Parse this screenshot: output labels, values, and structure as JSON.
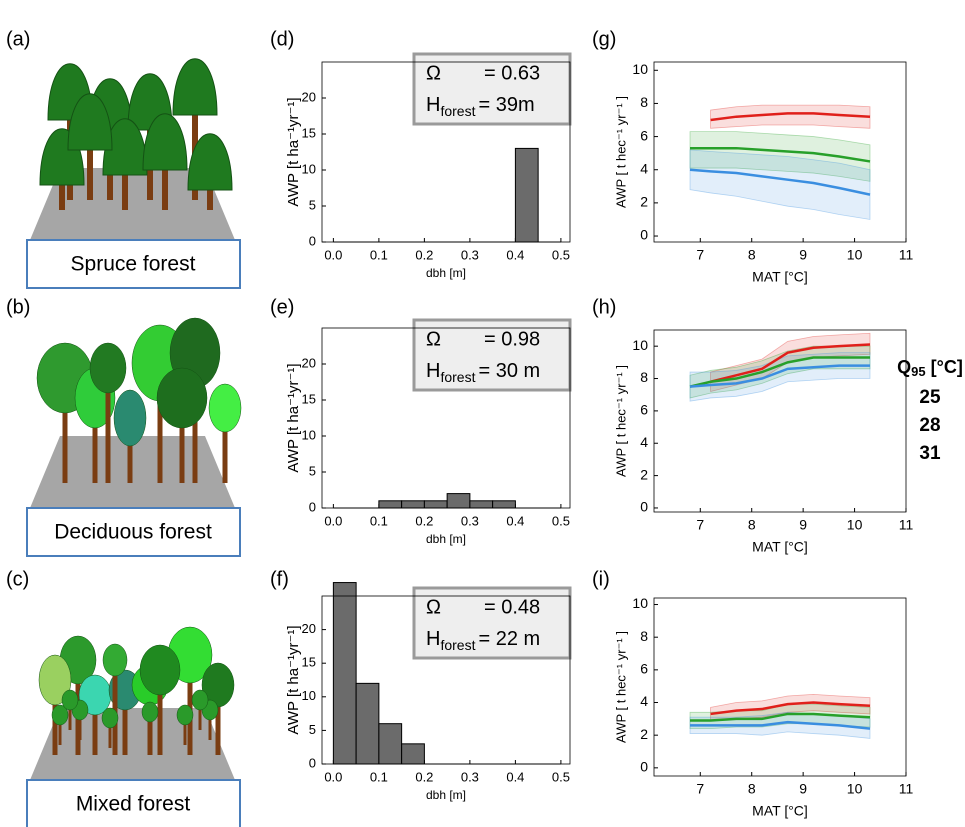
{
  "illustrations": [
    {
      "label": "(a)",
      "caption": "Spruce forest"
    },
    {
      "label": "(b)",
      "caption": "Deciduous forest"
    },
    {
      "label": "(c)",
      "caption": "Mixed forest"
    }
  ],
  "chart_data": [
    {
      "type": "histogram",
      "panel_label": "(d)",
      "annotation": {
        "omega": "Ω",
        "omega_value": "= 0.63",
        "h": "H",
        "h_sub": "forest",
        "h_value": "= 39m"
      },
      "bins": [
        0,
        0.05,
        0.1,
        0.15,
        0.2,
        0.25,
        0.3,
        0.35,
        0.4,
        0.45,
        0.5
      ],
      "values": [
        0,
        0,
        0,
        0,
        0,
        0,
        0,
        0,
        13,
        0
      ],
      "color": "#6b6b6b",
      "xlim": [
        -0.025,
        0.52
      ],
      "ylim": [
        0,
        25
      ],
      "xticks": [
        {
          "value": 0,
          "label": "0.0"
        },
        0.1,
        0.2,
        0.3,
        0.4,
        0.5
      ],
      "yticks": [
        0,
        5,
        10,
        15,
        20
      ],
      "xlabel": "dbh [m]",
      "ylabel": "AWP [t ha⁻¹yr⁻¹]"
    },
    {
      "type": "histogram",
      "panel_label": "(e)",
      "annotation": {
        "omega": "Ω",
        "omega_value": "= 0.98",
        "h": "H",
        "h_sub": "forest",
        "h_value": "= 30 m"
      },
      "bins": [
        0,
        0.05,
        0.1,
        0.15,
        0.2,
        0.25,
        0.3,
        0.35,
        0.4,
        0.45,
        0.5
      ],
      "values": [
        0,
        0,
        1,
        1,
        1,
        2,
        1,
        1,
        0,
        0
      ],
      "color": "#6b6b6b",
      "xlim": [
        -0.025,
        0.52
      ],
      "ylim": [
        0,
        25
      ],
      "xticks": [
        {
          "value": 0,
          "label": "0.0"
        },
        0.1,
        0.2,
        0.3,
        0.4,
        0.5
      ],
      "yticks": [
        0,
        5,
        10,
        15,
        20
      ],
      "xlabel": "dbh [m]",
      "ylabel": "AWP [t ha⁻¹yr⁻¹]"
    },
    {
      "type": "histogram",
      "panel_label": "(f)",
      "annotation": {
        "omega": "Ω",
        "omega_value": "= 0.48",
        "h": "H",
        "h_sub": "forest",
        "h_value": "= 22 m"
      },
      "bins": [
        0,
        0.05,
        0.1,
        0.15,
        0.2,
        0.25,
        0.3,
        0.35,
        0.4,
        0.45,
        0.5
      ],
      "values": [
        27,
        12,
        6,
        3,
        0,
        0,
        0,
        0,
        0,
        0
      ],
      "color": "#6b6b6b",
      "xlim": [
        -0.025,
        0.52
      ],
      "ylim": [
        0,
        25
      ],
      "xticks": [
        {
          "value": 0,
          "label": "0.0"
        },
        0.1,
        0.2,
        0.3,
        0.4,
        0.5
      ],
      "yticks": [
        0,
        5,
        10,
        15,
        20
      ],
      "xlabel": "dbh [m]",
      "ylabel": "AWP [t ha⁻¹yr⁻¹]"
    },
    {
      "type": "line",
      "panel_label": "(g)",
      "x": [
        6.8,
        7.2,
        7.7,
        8.2,
        8.7,
        9.2,
        9.7,
        10.3
      ],
      "series": [
        {
          "color": "#e0201b",
          "values": [
            null,
            7.0,
            7.2,
            7.3,
            7.4,
            7.4,
            7.3,
            7.2
          ],
          "lower": [
            null,
            6.5,
            6.6,
            6.7,
            6.7,
            6.7,
            6.6,
            6.5
          ],
          "upper": [
            null,
            7.6,
            7.8,
            7.9,
            7.9,
            7.9,
            7.9,
            7.8
          ]
        },
        {
          "color": "#27a02a",
          "values": [
            5.3,
            5.3,
            5.3,
            5.2,
            5.1,
            5.0,
            4.8,
            4.5
          ],
          "lower": [
            4.1,
            4.1,
            4.1,
            4.0,
            3.9,
            3.8,
            3.6,
            3.3
          ],
          "upper": [
            6.3,
            6.3,
            6.3,
            6.2,
            6.1,
            6.0,
            5.8,
            5.5
          ]
        },
        {
          "color": "#3a8ee0",
          "values": [
            4.0,
            3.9,
            3.8,
            3.6,
            3.4,
            3.2,
            2.9,
            2.5
          ],
          "lower": [
            2.8,
            2.6,
            2.4,
            2.1,
            1.8,
            1.6,
            1.3,
            1.0
          ],
          "upper": [
            5.2,
            5.1,
            5.0,
            4.9,
            4.8,
            4.6,
            4.4,
            4.0
          ]
        }
      ],
      "xlim": [
        6.1,
        11
      ],
      "ylim": [
        -0.36,
        10.5
      ],
      "xticks": [
        7,
        8,
        9,
        10,
        11
      ],
      "yticks": [
        0,
        2,
        4,
        6,
        8,
        10
      ],
      "xlabel": "MAT [°C]",
      "ylabel": "AWP [ t hec⁻¹ yr⁻¹ ]"
    },
    {
      "type": "line",
      "panel_label": "(h)",
      "x": [
        6.8,
        7.2,
        7.7,
        8.2,
        8.7,
        9.2,
        9.7,
        10.3
      ],
      "legend": {
        "title": "Q",
        "title_sub": "95",
        "title_unit": " [°C]"
      },
      "series": [
        {
          "name": "25",
          "color": "#e0201b",
          "values": [
            null,
            7.8,
            8.2,
            8.6,
            9.6,
            9.9,
            10.0,
            10.1
          ],
          "lower": [
            null,
            7.2,
            7.6,
            8.0,
            9.0,
            9.3,
            9.4,
            9.5
          ],
          "upper": [
            null,
            8.4,
            8.8,
            9.2,
            10.3,
            10.6,
            10.7,
            10.8
          ]
        },
        {
          "name": "28",
          "color": "#27a02a",
          "values": [
            7.5,
            7.8,
            8.0,
            8.4,
            9.0,
            9.3,
            9.3,
            9.3
          ],
          "lower": [
            6.8,
            7.1,
            7.3,
            7.7,
            8.3,
            8.6,
            8.6,
            8.6
          ],
          "upper": [
            8.2,
            8.5,
            8.7,
            9.1,
            9.7,
            10.0,
            10.0,
            10.0
          ]
        },
        {
          "name": "31",
          "color": "#3a8ee0",
          "values": [
            7.5,
            7.6,
            7.7,
            8.0,
            8.6,
            8.7,
            8.8,
            8.8
          ],
          "lower": [
            6.6,
            6.8,
            6.9,
            7.2,
            7.8,
            7.9,
            8.0,
            8.0
          ],
          "upper": [
            8.4,
            8.4,
            8.5,
            8.8,
            9.4,
            9.5,
            9.6,
            9.6
          ]
        }
      ],
      "xlim": [
        6.1,
        11
      ],
      "ylim": [
        -0.25,
        11
      ],
      "xticks": [
        7,
        8,
        9,
        10,
        11
      ],
      "yticks": [
        0,
        2,
        4,
        6,
        8,
        10
      ],
      "xlabel": "MAT [°C]",
      "ylabel": "AWP [ t hec⁻¹ yr⁻¹ ]"
    },
    {
      "type": "line",
      "panel_label": "(i)",
      "x": [
        6.8,
        7.2,
        7.7,
        8.2,
        8.7,
        9.2,
        9.7,
        10.3
      ],
      "series": [
        {
          "color": "#e0201b",
          "values": [
            null,
            3.3,
            3.5,
            3.6,
            3.9,
            4.0,
            3.9,
            3.8
          ],
          "lower": [
            null,
            2.9,
            3.0,
            3.1,
            3.4,
            3.5,
            3.4,
            3.3
          ],
          "upper": [
            null,
            3.7,
            4.0,
            4.1,
            4.4,
            4.5,
            4.4,
            4.3
          ]
        },
        {
          "color": "#27a02a",
          "values": [
            2.9,
            2.9,
            3.0,
            3.0,
            3.3,
            3.3,
            3.2,
            3.1
          ],
          "lower": [
            2.4,
            2.4,
            2.5,
            2.5,
            2.7,
            2.7,
            2.6,
            2.5
          ],
          "upper": [
            3.4,
            3.4,
            3.5,
            3.5,
            3.9,
            3.9,
            3.8,
            3.7
          ]
        },
        {
          "color": "#3a8ee0",
          "values": [
            2.6,
            2.6,
            2.6,
            2.6,
            2.8,
            2.7,
            2.6,
            2.4
          ],
          "lower": [
            2.1,
            2.1,
            2.1,
            2.0,
            2.2,
            2.1,
            2.0,
            1.8
          ],
          "upper": [
            3.1,
            3.1,
            3.1,
            3.2,
            3.4,
            3.3,
            3.2,
            3.0
          ]
        }
      ],
      "xlim": [
        6.1,
        11
      ],
      "ylim": [
        -0.5,
        10.4
      ],
      "xticks": [
        7,
        8,
        9,
        10,
        11
      ],
      "yticks": [
        0,
        2,
        4,
        6,
        8,
        10
      ],
      "xlabel": "MAT [°C]",
      "ylabel": "AWP [ t hec⁻¹ yr⁻¹ ]"
    }
  ]
}
